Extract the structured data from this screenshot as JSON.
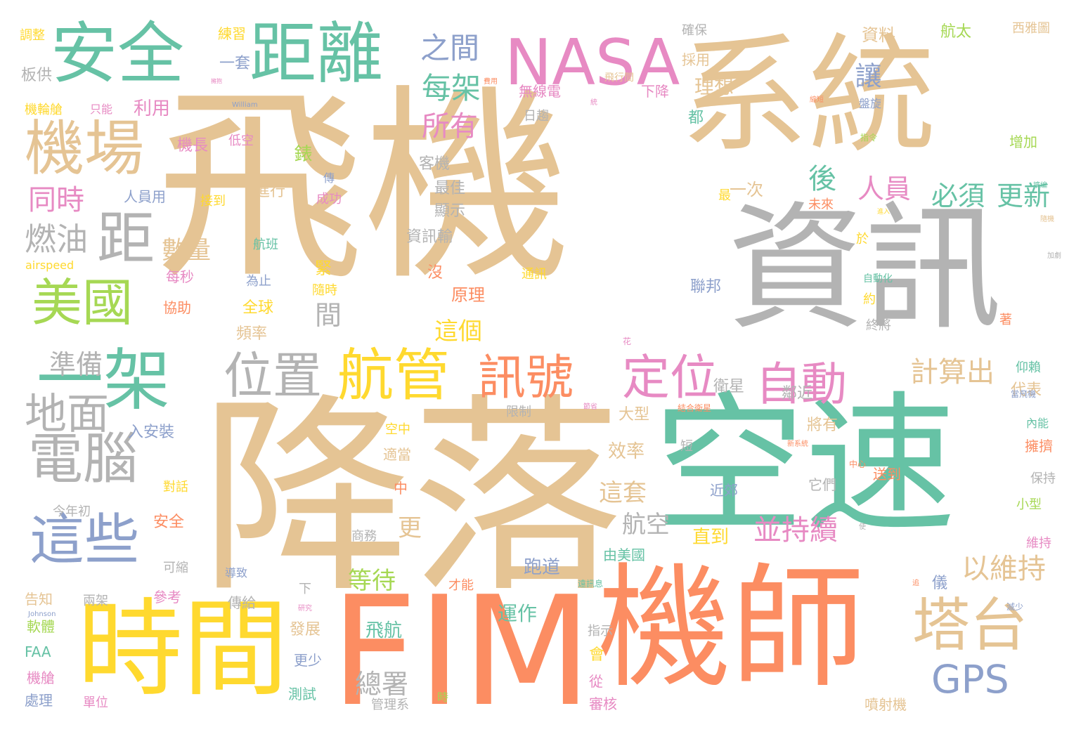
{
  "palette": {
    "tan": "#e5c494",
    "green": "#66c2a5",
    "gray": "#b3b3b3",
    "orange": "#fc8d62",
    "yellow": "#ffd92f",
    "pink": "#e78ac3",
    "blue": "#8da0cb",
    "lime": "#a6d854"
  },
  "words": [
    {
      "text": "飛機",
      "color": "tan"
    },
    {
      "text": "系統",
      "color": "tan"
    },
    {
      "text": "降落",
      "color": "tan"
    },
    {
      "text": "空速",
      "color": "green"
    },
    {
      "text": "資訊",
      "color": "gray"
    },
    {
      "text": "機師",
      "color": "orange"
    },
    {
      "text": "FIM",
      "color": "orange"
    },
    {
      "text": "時間",
      "color": "yellow"
    },
    {
      "text": "安全",
      "color": "green"
    },
    {
      "text": "距離",
      "color": "green"
    },
    {
      "text": "NASA",
      "color": "pink"
    },
    {
      "text": "機場",
      "color": "tan"
    },
    {
      "text": "一架",
      "color": "green"
    },
    {
      "text": "距",
      "color": "gray"
    },
    {
      "text": "美國",
      "color": "lime"
    },
    {
      "text": "這些",
      "color": "blue"
    },
    {
      "text": "塔台",
      "color": "tan"
    },
    {
      "text": "電腦",
      "color": "gray"
    },
    {
      "text": "航管",
      "color": "yellow"
    },
    {
      "text": "位置",
      "color": "gray"
    },
    {
      "text": "訊號",
      "color": "orange"
    },
    {
      "text": "定位",
      "color": "pink"
    },
    {
      "text": "自動",
      "color": "pink"
    },
    {
      "text": "GPS",
      "color": "blue"
    },
    {
      "text": "地面",
      "color": "gray"
    },
    {
      "text": "燃油",
      "color": "gray"
    },
    {
      "text": "之間",
      "color": "blue"
    },
    {
      "text": "每架",
      "color": "green"
    },
    {
      "text": "所有",
      "color": "pink"
    },
    {
      "text": "讓",
      "color": "blue"
    },
    {
      "text": "人員",
      "color": "pink"
    },
    {
      "text": "必須",
      "color": "green"
    },
    {
      "text": "更新",
      "color": "green"
    },
    {
      "text": "後",
      "color": "green"
    },
    {
      "text": "計算出",
      "color": "tan"
    },
    {
      "text": "以維持",
      "color": "tan"
    },
    {
      "text": "並持續",
      "color": "pink"
    },
    {
      "text": "同時",
      "color": "pink"
    },
    {
      "text": "準備",
      "color": "gray"
    },
    {
      "text": "數量",
      "color": "tan"
    },
    {
      "text": "間",
      "color": "gray"
    },
    {
      "text": "這個",
      "color": "yellow"
    },
    {
      "text": "這套",
      "color": "tan"
    },
    {
      "text": "航空",
      "color": "gray"
    },
    {
      "text": "等待",
      "color": "lime"
    },
    {
      "text": "更",
      "color": "tan"
    },
    {
      "text": "總署",
      "color": "gray"
    },
    {
      "text": "飛航",
      "color": "green"
    },
    {
      "text": "運作",
      "color": "green"
    },
    {
      "text": "跑道",
      "color": "blue"
    },
    {
      "text": "直到",
      "color": "yellow"
    },
    {
      "text": "一次",
      "color": "tan"
    },
    {
      "text": "利用",
      "color": "pink"
    },
    {
      "text": "一套",
      "color": "blue"
    },
    {
      "text": "練習",
      "color": "yellow"
    },
    {
      "text": "無線電",
      "color": "pink"
    },
    {
      "text": "下降",
      "color": "pink"
    },
    {
      "text": "理想",
      "color": "tan"
    },
    {
      "text": "資料",
      "color": "tan"
    },
    {
      "text": "航太",
      "color": "lime"
    },
    {
      "text": "西雅圖",
      "color": "tan"
    },
    {
      "text": "確保",
      "color": "gray"
    },
    {
      "text": "採用",
      "color": "tan"
    },
    {
      "text": "調整",
      "color": "yellow"
    },
    {
      "text": "板供",
      "color": "gray"
    },
    {
      "text": "機輪艙",
      "color": "yellow"
    },
    {
      "text": "只能",
      "color": "pink"
    },
    {
      "text": "機長",
      "color": "pink"
    },
    {
      "text": "低空",
      "color": "pink"
    },
    {
      "text": "錶",
      "color": "lime"
    },
    {
      "text": "客機",
      "color": "gray"
    },
    {
      "text": "最佳",
      "color": "gray"
    },
    {
      "text": "顯示",
      "color": "gray"
    },
    {
      "text": "資訊輸",
      "color": "gray"
    },
    {
      "text": "人員用",
      "color": "blue"
    },
    {
      "text": "接到",
      "color": "yellow"
    },
    {
      "text": "進行",
      "color": "tan"
    },
    {
      "text": "成功",
      "color": "pink"
    },
    {
      "text": "傳",
      "color": "blue"
    },
    {
      "text": "航班",
      "color": "green"
    },
    {
      "text": "每秒",
      "color": "pink"
    },
    {
      "text": "協助",
      "color": "orange"
    },
    {
      "text": "為止",
      "color": "blue"
    },
    {
      "text": "全球",
      "color": "yellow"
    },
    {
      "text": "頻率",
      "color": "tan"
    },
    {
      "text": "緊",
      "color": "yellow"
    },
    {
      "text": "隨時",
      "color": "yellow"
    },
    {
      "text": "原理",
      "color": "orange"
    },
    {
      "text": "沒",
      "color": "orange"
    },
    {
      "text": "通訊",
      "color": "yellow"
    },
    {
      "text": "聯邦",
      "color": "blue"
    },
    {
      "text": "約",
      "color": "yellow"
    },
    {
      "text": "終將",
      "color": "gray"
    },
    {
      "text": "衛星",
      "color": "gray"
    },
    {
      "text": "鄰近",
      "color": "gray"
    },
    {
      "text": "代表",
      "color": "tan"
    },
    {
      "text": "仰賴",
      "color": "green"
    },
    {
      "text": "將有",
      "color": "tan"
    },
    {
      "text": "大型",
      "color": "tan"
    },
    {
      "text": "效率",
      "color": "tan"
    },
    {
      "text": "入安裝",
      "color": "blue"
    },
    {
      "text": "空中",
      "color": "yellow"
    },
    {
      "text": "適當",
      "color": "tan"
    },
    {
      "text": "限制",
      "color": "gray"
    },
    {
      "text": "短",
      "color": "gray"
    },
    {
      "text": "近郊",
      "color": "blue"
    },
    {
      "text": "它們",
      "color": "gray"
    },
    {
      "text": "送到",
      "color": "orange"
    },
    {
      "text": "擁擠",
      "color": "orange"
    },
    {
      "text": "內能",
      "color": "green"
    },
    {
      "text": "小型",
      "color": "lime"
    },
    {
      "text": "保持",
      "color": "gray"
    },
    {
      "text": "維持",
      "color": "pink"
    },
    {
      "text": "今年初",
      "color": "gray"
    },
    {
      "text": "對話",
      "color": "yellow"
    },
    {
      "text": "安全",
      "color": "orange"
    },
    {
      "text": "中",
      "color": "orange"
    },
    {
      "text": "商務",
      "color": "gray"
    },
    {
      "text": "參考",
      "color": "pink"
    },
    {
      "text": "傳給",
      "color": "gray"
    },
    {
      "text": "下",
      "color": "gray"
    },
    {
      "text": "由美國",
      "color": "green"
    },
    {
      "text": "才能",
      "color": "orange"
    },
    {
      "text": "儀",
      "color": "blue"
    },
    {
      "text": "告知",
      "color": "tan"
    },
    {
      "text": "兩架",
      "color": "gray"
    },
    {
      "text": "可縮",
      "color": "gray"
    },
    {
      "text": "導致",
      "color": "blue"
    },
    {
      "text": "軟體",
      "color": "lime"
    },
    {
      "text": "FAA",
      "color": "green"
    },
    {
      "text": "機艙",
      "color": "pink"
    },
    {
      "text": "處理",
      "color": "blue"
    },
    {
      "text": "發展",
      "color": "tan"
    },
    {
      "text": "更少",
      "color": "blue"
    },
    {
      "text": "測試",
      "color": "green"
    },
    {
      "text": "指示",
      "color": "gray"
    },
    {
      "text": "會",
      "color": "yellow"
    },
    {
      "text": "從",
      "color": "pink"
    },
    {
      "text": "審核",
      "color": "pink"
    },
    {
      "text": "噴射機",
      "color": "tan"
    },
    {
      "text": "管理系",
      "color": "gray"
    },
    {
      "text": "時",
      "color": "lime"
    },
    {
      "text": "單位",
      "color": "pink"
    },
    {
      "text": "都",
      "color": "green"
    },
    {
      "text": "日趨",
      "color": "gray"
    },
    {
      "text": "最",
      "color": "yellow"
    },
    {
      "text": "未來",
      "color": "orange"
    },
    {
      "text": "著",
      "color": "orange"
    },
    {
      "text": "增加",
      "color": "lime"
    },
    {
      "text": "於",
      "color": "yellow"
    },
    {
      "text": "盤旋",
      "color": "blue"
    },
    {
      "text": "飛行間",
      "color": "tan"
    },
    {
      "text": "airspeed",
      "color": "yellow"
    },
    {
      "text": "William",
      "color": "blue"
    },
    {
      "text": "Johnson",
      "color": "blue"
    },
    {
      "text": "中心",
      "color": "orange"
    },
    {
      "text": "自動化",
      "color": "green"
    },
    {
      "text": "當飛機",
      "color": "blue"
    },
    {
      "text": "指令",
      "color": "lime"
    },
    {
      "text": "遠訊息",
      "color": "green"
    },
    {
      "text": "花",
      "color": "pink"
    },
    {
      "text": "研究",
      "color": "pink"
    },
    {
      "text": "節省",
      "color": "pink"
    },
    {
      "text": "使",
      "color": "gray"
    },
    {
      "text": "滅少",
      "color": "blue"
    },
    {
      "text": "結合衛星",
      "color": "orange"
    },
    {
      "text": "擴編",
      "color": "green"
    },
    {
      "text": "費用",
      "color": "orange"
    },
    {
      "text": "統",
      "color": "pink"
    },
    {
      "text": "隨機",
      "color": "tan"
    },
    {
      "text": "加劇",
      "color": "gray"
    },
    {
      "text": "縮短",
      "color": "orange"
    },
    {
      "text": "新系統",
      "color": "orange"
    },
    {
      "text": "擁抱",
      "color": "pink"
    },
    {
      "text": "進入",
      "color": "yellow"
    },
    {
      "text": "追",
      "color": "orange"
    }
  ]
}
